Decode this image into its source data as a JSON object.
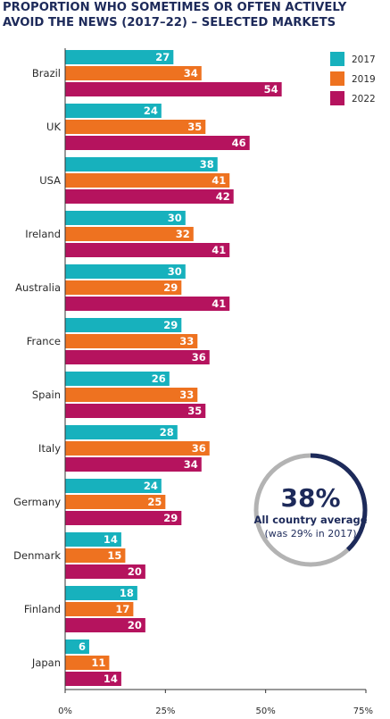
{
  "chart_data": {
    "type": "bar",
    "orientation": "horizontal",
    "title": "PROPORTION WHO SOMETIMES OR OFTEN ACTIVELY AVOID THE NEWS (2017–22) – SELECTED MARKETS",
    "categories": [
      "Brazil",
      "UK",
      "USA",
      "Ireland",
      "Australia",
      "France",
      "Spain",
      "Italy",
      "Germany",
      "Denmark",
      "Finland",
      "Japan"
    ],
    "series": [
      {
        "name": "2017",
        "color": "#17b1bd",
        "values": [
          27,
          24,
          38,
          30,
          30,
          29,
          26,
          28,
          24,
          14,
          18,
          6
        ]
      },
      {
        "name": "2019",
        "color": "#ee7220",
        "values": [
          34,
          35,
          41,
          32,
          29,
          33,
          33,
          36,
          25,
          15,
          17,
          11
        ]
      },
      {
        "name": "2022",
        "color": "#b5135e",
        "values": [
          54,
          46,
          42,
          41,
          41,
          36,
          35,
          34,
          29,
          20,
          20,
          14
        ]
      }
    ],
    "xlim": [
      0,
      75
    ],
    "xticks": [
      0,
      25,
      50,
      75
    ],
    "xtick_labels": [
      "0%",
      "25%",
      "50%",
      "75%"
    ],
    "legend_position": "top-right",
    "grid": false,
    "annotation": {
      "value": "38%",
      "label": "All country average",
      "note": "(was 29% in 2017)",
      "ring_fraction": 0.38,
      "ring_color": "#1d2a5a",
      "ring_track_color": "#b3b3b3"
    }
  }
}
